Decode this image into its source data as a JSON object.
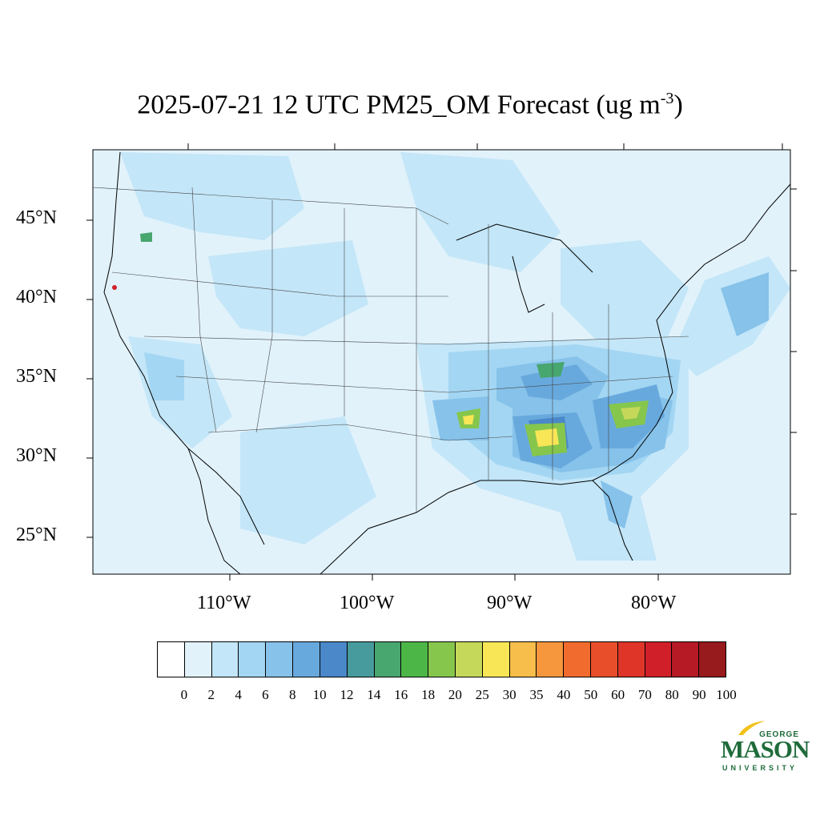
{
  "title": {
    "main": "2025-07-21 12 UTC PM25_OM Forecast (ug m",
    "sup": "-3",
    "close": ")"
  },
  "lat_labels": [
    "45°N",
    "40°N",
    "35°N",
    "30°N",
    "25°N"
  ],
  "lon_labels": [
    "110°W",
    "100°W",
    "90°W",
    "80°W"
  ],
  "colorbar": {
    "labels": [
      "0",
      "2",
      "4",
      "6",
      "8",
      "10",
      "12",
      "14",
      "16",
      "18",
      "20",
      "25",
      "30",
      "35",
      "40",
      "50",
      "60",
      "70",
      "80",
      "90",
      "100"
    ],
    "colors": [
      "#ffffff",
      "#e1f2fb",
      "#c3e6f8",
      "#a3d6f3",
      "#86c2ea",
      "#68a9dd",
      "#4a88c9",
      "#479b9d",
      "#48a66f",
      "#4cb747",
      "#86c64c",
      "#c6d859",
      "#f8e656",
      "#f7be4b",
      "#f6963d",
      "#f26b2e",
      "#e94e2b",
      "#df3529",
      "#d01f29",
      "#b51a25",
      "#971a1d"
    ]
  },
  "logo": {
    "george": "GEORGE",
    "mason": "MASON",
    "university": "UNIVERSITY",
    "color": "#1f6b3a",
    "accent": "#f2c21b"
  }
}
